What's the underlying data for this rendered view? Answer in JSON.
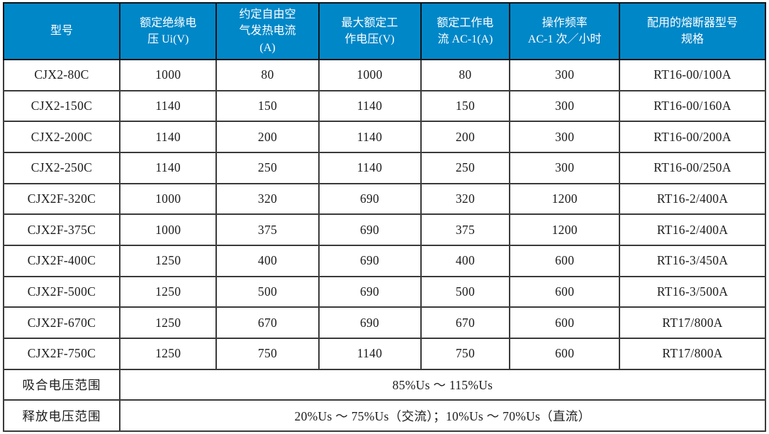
{
  "table": {
    "columns": [
      "型号",
      "额定绝缘电\n压 Ui(V)",
      "约定自由空\n气发热电流\n(A)",
      "最大额定工\n作电压(V)",
      "额定工作电\n流 AC-1(A)",
      "操作频率\nAC-1 次／小时",
      "配用的熔断器型号\n规格"
    ],
    "rows": [
      [
        "CJX2-80C",
        "1000",
        "80",
        "1000",
        "80",
        "300",
        "RT16-00/100A"
      ],
      [
        "CJX2-150C",
        "1140",
        "150",
        "1140",
        "150",
        "300",
        "RT16-00/160A"
      ],
      [
        "CJX2-200C",
        "1140",
        "200",
        "1140",
        "200",
        "300",
        "RT16-00/200A"
      ],
      [
        "CJX2-250C",
        "1140",
        "250",
        "1140",
        "250",
        "300",
        "RT16-00/250A"
      ],
      [
        "CJX2F-320C",
        "1000",
        "320",
        "690",
        "320",
        "1200",
        "RT16-2/400A"
      ],
      [
        "CJX2F-375C",
        "1000",
        "375",
        "690",
        "375",
        "1200",
        "RT16-2/400A"
      ],
      [
        "CJX2F-400C",
        "1250",
        "400",
        "690",
        "400",
        "600",
        "RT16-3/450A"
      ],
      [
        "CJX2F-500C",
        "1250",
        "500",
        "690",
        "500",
        "600",
        "RT16-3/500A"
      ],
      [
        "CJX2F-670C",
        "1250",
        "670",
        "690",
        "670",
        "600",
        "RT17/800A"
      ],
      [
        "CJX2F-750C",
        "1250",
        "750",
        "1140",
        "750",
        "600",
        "RT17/800A"
      ]
    ],
    "footer_rows": [
      {
        "label": "吸合电压范围",
        "value": "85%Us ～ 115%Us"
      },
      {
        "label": "释放电压范围",
        "value": "20%Us ～ 75%Us（交流）；10%Us ～ 70%Us（直流）"
      }
    ]
  },
  "colors": {
    "header_bg": "#0087c8",
    "header_text": "#ffffff",
    "body_text": "#1c1c1c",
    "border": "#3a3a3a"
  }
}
